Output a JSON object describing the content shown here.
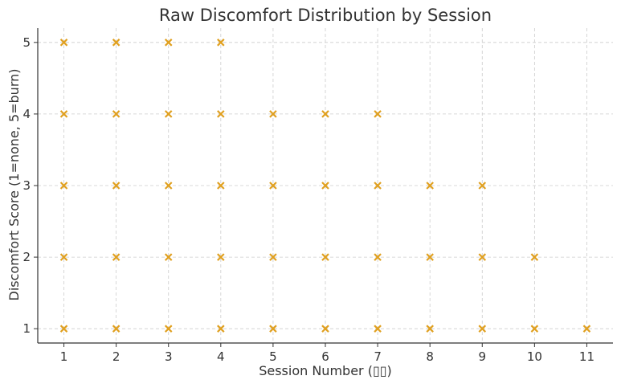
{
  "chart_data": {
    "type": "scatter",
    "title": "Raw Discomfort Distribution by Session",
    "xlabel": "Session Number (▯▯)",
    "ylabel": "Discomfort Score (1=none, 5=burn)",
    "xlim": [
      0.5,
      11.5
    ],
    "ylim": [
      0.8,
      5.2
    ],
    "xticks": [
      1,
      2,
      3,
      4,
      5,
      6,
      7,
      8,
      9,
      10,
      11
    ],
    "yticks": [
      1,
      2,
      3,
      4,
      5
    ],
    "grid": true,
    "marker": "x",
    "series": [
      {
        "color": "#e0a020",
        "points": [
          [
            1,
            1
          ],
          [
            1,
            2
          ],
          [
            1,
            3
          ],
          [
            1,
            4
          ],
          [
            1,
            5
          ],
          [
            2,
            1
          ],
          [
            2,
            2
          ],
          [
            2,
            3
          ],
          [
            2,
            4
          ],
          [
            2,
            5
          ],
          [
            3,
            1
          ],
          [
            3,
            2
          ],
          [
            3,
            3
          ],
          [
            3,
            4
          ],
          [
            3,
            5
          ],
          [
            4,
            1
          ],
          [
            4,
            2
          ],
          [
            4,
            3
          ],
          [
            4,
            4
          ],
          [
            4,
            5
          ],
          [
            5,
            1
          ],
          [
            5,
            2
          ],
          [
            5,
            3
          ],
          [
            5,
            4
          ],
          [
            6,
            1
          ],
          [
            6,
            2
          ],
          [
            6,
            3
          ],
          [
            6,
            4
          ],
          [
            7,
            1
          ],
          [
            7,
            2
          ],
          [
            7,
            3
          ],
          [
            7,
            4
          ],
          [
            8,
            1
          ],
          [
            8,
            2
          ],
          [
            8,
            3
          ],
          [
            9,
            1
          ],
          [
            9,
            2
          ],
          [
            9,
            3
          ],
          [
            10,
            1
          ],
          [
            10,
            2
          ],
          [
            11,
            1
          ]
        ]
      }
    ]
  }
}
